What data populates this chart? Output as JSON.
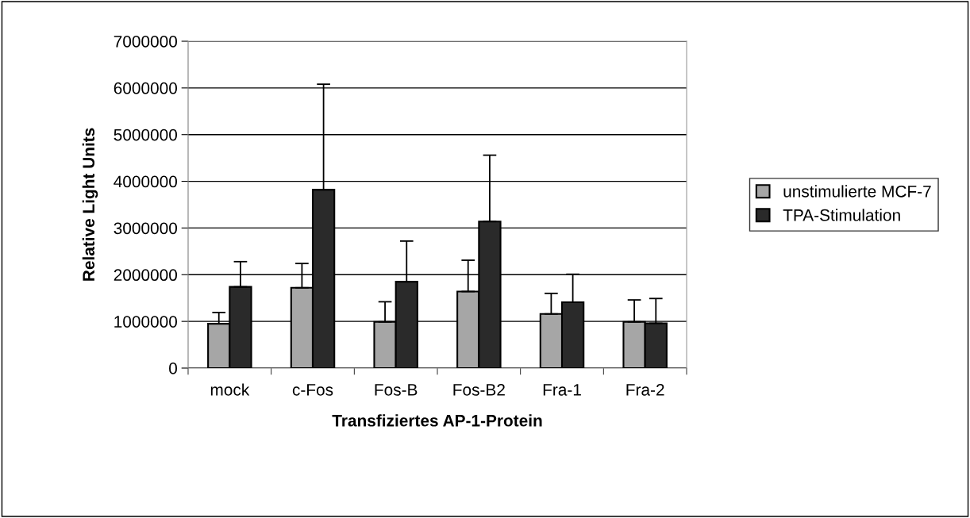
{
  "chart_data": {
    "type": "bar",
    "xlabel": "Transfiziertes AP-1-Protein",
    "ylabel": "Relative Light Units",
    "categories": [
      "mock",
      "c-Fos",
      "Fos-B",
      "Fos-B2",
      "Fra-1",
      "Fra-2"
    ],
    "series": [
      {
        "name": "unstimulierte MCF-7",
        "color": "#a6a6a6",
        "values": [
          950000,
          1720000,
          990000,
          1640000,
          1160000,
          990000
        ],
        "errors": [
          [
            950000,
            1190000
          ],
          [
            1720000,
            2240000
          ],
          [
            990000,
            1420000
          ],
          [
            1640000,
            2310000
          ],
          [
            1160000,
            1600000
          ],
          [
            990000,
            1460000
          ]
        ]
      },
      {
        "name": "TPA-Stimulation",
        "color": "#2a2a2a",
        "values": [
          1740000,
          3820000,
          1850000,
          3140000,
          1410000,
          960000
        ],
        "errors": [
          [
            1740000,
            2280000
          ],
          [
            3820000,
            6080000
          ],
          [
            1850000,
            2720000
          ],
          [
            3140000,
            4560000
          ],
          [
            1410000,
            2010000
          ],
          [
            960000,
            1490000
          ]
        ]
      }
    ],
    "ylim": [
      0,
      7000000
    ],
    "yticks": [
      0,
      1000000,
      2000000,
      3000000,
      4000000,
      5000000,
      6000000,
      7000000
    ],
    "grid": "y",
    "legend": "right"
  }
}
